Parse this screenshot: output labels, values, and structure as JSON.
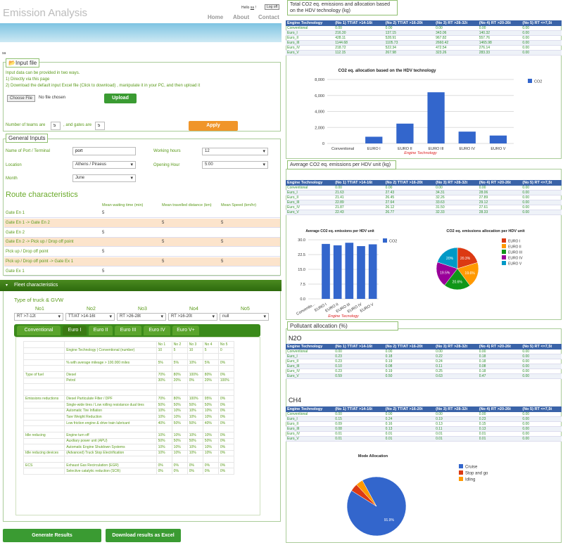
{
  "header": {
    "title": "Emission Analysis",
    "hello_label": "Hello",
    "user": "sa",
    "logoff": "Log off",
    "nav": [
      "Home",
      "About",
      "Contact"
    ],
    "user_tag": "sa"
  },
  "input_file": {
    "title": "Input file",
    "line1": "Input data can be provided in two ways.",
    "line2": "1) Directly via this page",
    "line3": "2) Download the default input Excel file (Click to download) , manipulate it in your PC, and then upload it",
    "choose_label": "Choose File",
    "no_file": "No file chosen",
    "upload": "Upload",
    "teams_label": "Number of teams are",
    "teams_value": "5",
    "gates_label": ", and gates are",
    "gates_value": "5",
    "apply": "Apply"
  },
  "general": {
    "title": "General Inputs",
    "port_label": "Name of Port / Terminal",
    "port_value": "port",
    "location_label": "Location",
    "location_value": "Athens / Piraeus",
    "month_label": "Month",
    "month_value": "June",
    "hours_label": "Working hours",
    "hours_value": "12",
    "opening_label": "Opening Hour",
    "opening_value": "5:00"
  },
  "route": {
    "title": "Route characteristics",
    "headers": [
      "Mean waiting time (min)",
      "Mean travelled distance (km)",
      "Mean Speed (km/hr)"
    ],
    "rows": [
      {
        "label": "Gate En 1",
        "wait": "5",
        "dist": "",
        "speed": ""
      },
      {
        "label": "Gate En 1 -> Gate En 2",
        "wait": "",
        "dist": "5",
        "speed": "5"
      },
      {
        "label": "Gate En 2",
        "wait": "5",
        "dist": "",
        "speed": ""
      },
      {
        "label": "Gate En 2 -> Pick up / Drop off point",
        "wait": "",
        "dist": "5",
        "speed": "5"
      },
      {
        "label": "Pick up / Drop off point",
        "wait": "5",
        "dist": "",
        "speed": ""
      },
      {
        "label": "Pick up / Drop off point -> Gate Ex 1",
        "wait": "",
        "dist": "5",
        "speed": "5"
      },
      {
        "label": "Gate Ex 1",
        "wait": "5",
        "dist": "",
        "speed": ""
      }
    ]
  },
  "fleet": {
    "title": "Fleet characteristics",
    "truck_label": "Type of truck & GVW",
    "nos": [
      "No1",
      "No2",
      "No3",
      "No4",
      "No5"
    ],
    "types": [
      "RT >7-12t",
      "TT/AT >14-16t",
      "RT >26-28t",
      "RT >16-20t",
      "null"
    ],
    "tabs": [
      "Conventional",
      "Euro I",
      "Euro II",
      "Euro III",
      "Euro IV",
      "Euro V+"
    ],
    "cols": [
      "No 1",
      "No 2",
      "No 3",
      "No 4",
      "No 5"
    ],
    "rows": [
      {
        "cat": "",
        "name": "Engine Technology | Conventional (number)",
        "v": [
          "10",
          "5",
          "10",
          "5",
          "0"
        ]
      },
      {
        "cat": "",
        "name": "",
        "v": [
          "",
          "",
          "",
          "",
          ""
        ]
      },
      {
        "cat": "",
        "name": "% with average mileage > 100.000 miles",
        "v": [
          "5%",
          "5%",
          "10%",
          "5%",
          "0%"
        ]
      },
      {
        "cat": "",
        "name": "",
        "v": [
          "",
          "",
          "",
          "",
          ""
        ]
      },
      {
        "cat": "Type of fuel",
        "name": "Diesel",
        "v": [
          "70%",
          "80%",
          "100%",
          "80%",
          "0%"
        ]
      },
      {
        "cat": "",
        "name": "Petrol",
        "v": [
          "30%",
          "20%",
          "0%",
          "20%",
          "100%"
        ]
      },
      {
        "cat": "",
        "name": "",
        "v": [
          "",
          "",
          "",
          "",
          ""
        ]
      },
      {
        "cat": "",
        "name": "",
        "v": [
          "",
          "",
          "",
          "",
          ""
        ]
      },
      {
        "cat": "Emissions reductions",
        "name": "Diesel Particulate Filter / DPF",
        "v": [
          "70%",
          "80%",
          "100%",
          "95%",
          "0%"
        ]
      },
      {
        "cat": "",
        "name": "Single-wide tires / Low rolling resistance dual tires",
        "v": [
          "50%",
          "50%",
          "50%",
          "50%",
          "0%"
        ]
      },
      {
        "cat": "",
        "name": "Automatic Tire Inflation",
        "v": [
          "10%",
          "10%",
          "10%",
          "10%",
          "0%"
        ]
      },
      {
        "cat": "",
        "name": "Tare Weight Reduction",
        "v": [
          "10%",
          "10%",
          "10%",
          "10%",
          "0%"
        ]
      },
      {
        "cat": "",
        "name": "Low friction engine & drive train lubricant",
        "v": [
          "40%",
          "50%",
          "50%",
          "40%",
          "0%"
        ]
      },
      {
        "cat": "",
        "name": "",
        "v": [
          "",
          "",
          "",
          "",
          ""
        ]
      },
      {
        "cat": "Idle reducing",
        "name": "Engine turn off",
        "v": [
          "10%",
          "10%",
          "10%",
          "10%",
          "0%"
        ]
      },
      {
        "cat": "",
        "name": "Auxiliary power unit (APU)",
        "v": [
          "50%",
          "50%",
          "50%",
          "50%",
          "0%"
        ]
      },
      {
        "cat": "",
        "name": "Automatic Engine Shutdown Systems",
        "v": [
          "10%",
          "10%",
          "10%",
          "10%",
          "0%"
        ]
      },
      {
        "cat": "Idle reducing devices",
        "name": "(Advanced) Truck Stop Electrification",
        "v": [
          "10%",
          "10%",
          "10%",
          "10%",
          "0%"
        ]
      },
      {
        "cat": "",
        "name": "",
        "v": [
          "",
          "",
          "",
          "",
          ""
        ]
      },
      {
        "cat": "ECS",
        "name": "Exhaust Gas Recirculation (EGR)",
        "v": [
          "0%",
          "0%",
          "0%",
          "0%",
          "0%"
        ]
      },
      {
        "cat": "",
        "name": "Selective catalytic reduction (SCR)",
        "v": [
          "0%",
          "0%",
          "0%",
          "0%",
          "0%"
        ]
      }
    ]
  },
  "actions": {
    "generate": "Generate Results",
    "download": "Download results as Excel"
  },
  "table_headers": [
    "Engine Technology",
    "(No 1) TT/AT >14-16t",
    "(No 2) TT/AT >16-20t",
    "(No 3) RT >28-32t",
    "(No 4) RT >20-26t",
    "(No 5) RT <=7,5t"
  ],
  "total": {
    "title": "Total CO2 eq. emissions and allocation based on the HDV technology (kg)",
    "rows": [
      [
        "Conventional",
        "0.00",
        "0.00",
        "0.00",
        "0.00",
        "0.00"
      ],
      [
        "Euro_I",
        "216.30",
        "137.15",
        "343.06",
        "140.32",
        "0.00"
      ],
      [
        "Euro_II",
        "428.11",
        "528.91",
        "967.82",
        "557.76",
        "0.00"
      ],
      [
        "Euro_III",
        "1144.68",
        "1105.73",
        "2660.42",
        "1465.98",
        "0.00"
      ],
      [
        "Euro_IV",
        "218.72",
        "522.34",
        "472.54",
        "276.14",
        "0.00"
      ],
      [
        "Euro_V",
        "112.15",
        "267.98",
        "323.26",
        "283.33",
        "0.00"
      ]
    ]
  },
  "avg": {
    "title": "Average CO2 eq. emissions per HDV unit (kg)",
    "rows": [
      [
        "Conventional",
        "0.00",
        "0.00",
        "0.00",
        "0.00",
        "0.00"
      ],
      [
        "Euro_I",
        "21.63",
        "27.43",
        "34.31",
        "28.06",
        "0.00"
      ],
      [
        "Euro_II",
        "21.41",
        "26.45",
        "32.26",
        "27.89",
        "0.00"
      ],
      [
        "Euro_III",
        "22.89",
        "27.64",
        "33.63",
        "29.12",
        "0.00"
      ],
      [
        "Euro_IV",
        "21.87",
        "26.12",
        "31.50",
        "27.61",
        "0.00"
      ],
      [
        "Euro_V",
        "22.43",
        "26.77",
        "32.33",
        "28.33",
        "0.00"
      ]
    ]
  },
  "pollutant": {
    "title": "Pollutant allocation (%)",
    "n2o_label": "N2O",
    "ch4_label": "CH4",
    "n2o_rows": [
      [
        "Conventional",
        "0.00",
        "0.00",
        "0.00",
        "0.00",
        "0.00"
      ],
      [
        "Euro_I",
        "0.23",
        "0.18",
        "0.22",
        "0.18",
        "0.00"
      ],
      [
        "Euro_II",
        "0.23",
        "0.19",
        "0.24",
        "0.18",
        "0.00"
      ],
      [
        "Euro_III",
        "0.10",
        "0.08",
        "0.11",
        "0.08",
        "0.00"
      ],
      [
        "Euro_IV",
        "0.23",
        "0.19",
        "0.25",
        "0.18",
        "0.00"
      ],
      [
        "Euro_V",
        "0.59",
        "0.50",
        "0.63",
        "0.47",
        "0.00"
      ]
    ],
    "ch4_rows": [
      [
        "Conventional",
        "0.00",
        "0.00",
        "0.00",
        "0.00",
        "0.00"
      ],
      [
        "Euro_I",
        "0.15",
        "0.24",
        "0.19",
        "0.23",
        "0.00"
      ],
      [
        "Euro_II",
        "0.09",
        "0.16",
        "0.13",
        "0.15",
        "0.00"
      ],
      [
        "Euro_III",
        "0.08",
        "0.13",
        "0.11",
        "0.13",
        "0.00"
      ],
      [
        "Euro_IV",
        "0.01",
        "0.01",
        "0.01",
        "0.01",
        "0.00"
      ],
      [
        "Euro_V",
        "0.01",
        "0.01",
        "0.01",
        "0.01",
        "0.00"
      ]
    ]
  },
  "chart_data": [
    {
      "type": "bar",
      "title": "CO2 eq. allocation based on the HDV technology",
      "xlabel": "Engine Technology",
      "ylabel": "",
      "categories": [
        "Conventional",
        "EURO I",
        "EURO II",
        "EURO III",
        "EURO IV",
        "EURO V"
      ],
      "series": [
        {
          "name": "CO2",
          "values": [
            0,
            840,
            2480,
            6400,
            1480,
            990
          ]
        }
      ],
      "yticks": [
        "0",
        "2,000",
        "4,000",
        "6,000",
        "8,000"
      ],
      "ylim": [
        0,
        8000
      ],
      "color": "#3366cc",
      "legend": "right"
    },
    {
      "type": "bar",
      "title": "Average CO2 eq. emissions per HDV unit",
      "xlabel": "Engine Tecnology",
      "ylabel": "",
      "categories": [
        "Conventio...",
        "EURO I",
        "EURO II",
        "EURO III",
        "EURO IV",
        "EURO V"
      ],
      "series": [
        {
          "name": "CO2",
          "values": [
            0,
            27.9,
            27.2,
            28.5,
            26.8,
            27.7
          ]
        }
      ],
      "yticks": [
        "0.0",
        "7.5",
        "15.0",
        "22.5",
        "30.0"
      ],
      "ylim": [
        0,
        30
      ],
      "color": "#3366cc",
      "legend": "right"
    },
    {
      "type": "pie",
      "title": "CO2 eq. emissions allocation per HDV unit",
      "categories": [
        "EURO I",
        "EURO II",
        "EURO III",
        "EURO IV",
        "EURO V"
      ],
      "values": [
        20.3,
        19.6,
        20.6,
        19.5,
        20.0
      ],
      "labels": [
        "20.3%",
        "19.6%",
        "20.6%",
        "19.5%",
        "20%"
      ],
      "colors": [
        "#dc3912",
        "#ff9900",
        "#109618",
        "#990099",
        "#0099c6"
      ],
      "legend": "right"
    },
    {
      "type": "pie",
      "title": "Mode Allocation",
      "categories": [
        "Cruise",
        "Stop and go",
        "Idling"
      ],
      "values": [
        91.9,
        4.2,
        3.9
      ],
      "labels": [
        "91.9%",
        "",
        ""
      ],
      "colors": [
        "#3366cc",
        "#dc3912",
        "#ff9900"
      ],
      "legend": "right"
    }
  ]
}
